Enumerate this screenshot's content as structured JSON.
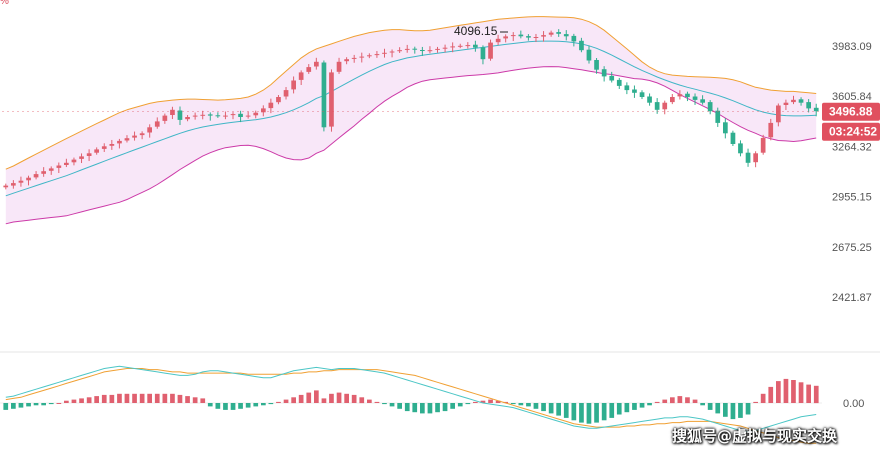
{
  "corner_mark": "%",
  "watermark": "搜狐号@虚拟与现实交换",
  "colors": {
    "up": "#e0606f",
    "down": "#2fae8f",
    "upper_band": "#f0a033",
    "lower_band": "#cc3aa8",
    "middle_band": "#3fb6c6",
    "band_fill": "#f7e3f7",
    "macd_line": "#4cc6c6",
    "signal_line": "#f0a033",
    "badge": "#e0505f"
  },
  "chart_data": {
    "type": "candlestick",
    "price_axis_ticks": [
      "3983.09",
      "3605.84",
      "3264.32",
      "2955.15",
      "2675.25",
      "2421.87"
    ],
    "price_axis_values": [
      3983.09,
      3605.84,
      3264.32,
      2955.15,
      2675.25,
      2421.87
    ],
    "scale": "log",
    "ylim": [
      2250,
      4500
    ],
    "peak_label": "4096.15",
    "last_price": "3496.88",
    "countdown": "03:24:52",
    "close": [
      3020,
      3035,
      3050,
      3068,
      3090,
      3108,
      3125,
      3143,
      3160,
      3180,
      3200,
      3220,
      3245,
      3265,
      3280,
      3300,
      3318,
      3335,
      3350,
      3390,
      3430,
      3470,
      3510,
      3440,
      3460,
      3470,
      3475,
      3470,
      3468,
      3470,
      3480,
      3460,
      3470,
      3490,
      3520,
      3560,
      3600,
      3650,
      3720,
      3780,
      3820,
      3860,
      3390,
      3780,
      3860,
      3880,
      3890,
      3900,
      3910,
      3920,
      3930,
      3940,
      3950,
      3960,
      3955,
      3945,
      3950,
      3960,
      3970,
      3980,
      3985,
      3990,
      3970,
      3880,
      4010,
      4040,
      4060,
      4070,
      4060,
      4050,
      4055,
      4070,
      4090,
      4080,
      4060,
      4020,
      3950,
      3870,
      3800,
      3750,
      3720,
      3680,
      3650,
      3630,
      3600,
      3560,
      3510,
      3560,
      3600,
      3620,
      3600,
      3580,
      3560,
      3500,
      3420,
      3350,
      3280,
      3220,
      3160,
      3220,
      3320,
      3420,
      3540,
      3560,
      3580,
      3560,
      3520,
      3500
    ],
    "open": [
      3010,
      3020,
      3038,
      3052,
      3070,
      3092,
      3110,
      3128,
      3146,
      3163,
      3184,
      3203,
      3224,
      3248,
      3268,
      3284,
      3303,
      3322,
      3338,
      3355,
      3394,
      3434,
      3474,
      3505,
      3445,
      3463,
      3472,
      3478,
      3472,
      3466,
      3473,
      3482,
      3463,
      3472,
      3493,
      3522,
      3563,
      3604,
      3655,
      3724,
      3784,
      3824,
      3855,
      3395,
      3784,
      3865,
      3884,
      3894,
      3904,
      3914,
      3924,
      3934,
      3944,
      3954,
      3962,
      3952,
      3942,
      3954,
      3964,
      3974,
      3982,
      3987,
      3993,
      3972,
      3884,
      4013,
      4044,
      4063,
      4074,
      4062,
      4047,
      4058,
      4073,
      4094,
      4078,
      4064,
      4024,
      3954,
      3874,
      3804,
      3754,
      3724,
      3684,
      3654,
      3634,
      3604,
      3564,
      3514,
      3564,
      3604,
      3624,
      3604,
      3584,
      3564,
      3504,
      3424,
      3354,
      3284,
      3224,
      3164,
      3224,
      3324,
      3424,
      3544,
      3564,
      3584,
      3564,
      3524
    ],
    "bollinger_upper": [
      3120,
      3140,
      3165,
      3190,
      3215,
      3240,
      3265,
      3290,
      3315,
      3340,
      3365,
      3390,
      3415,
      3440,
      3465,
      3490,
      3510,
      3525,
      3540,
      3555,
      3565,
      3572,
      3578,
      3582,
      3585,
      3585,
      3582,
      3580,
      3578,
      3580,
      3585,
      3590,
      3600,
      3620,
      3650,
      3690,
      3740,
      3790,
      3840,
      3890,
      3930,
      3960,
      3980,
      4000,
      4020,
      4040,
      4060,
      4075,
      4090,
      4100,
      4110,
      4115,
      4115,
      4110,
      4105,
      4105,
      4110,
      4120,
      4130,
      4140,
      4150,
      4160,
      4170,
      4180,
      4190,
      4200,
      4205,
      4210,
      4215,
      4220,
      4222,
      4222,
      4220,
      4218,
      4216,
      4212,
      4200,
      4180,
      4150,
      4110,
      4060,
      4010,
      3960,
      3910,
      3860,
      3820,
      3790,
      3770,
      3760,
      3755,
      3750,
      3748,
      3746,
      3744,
      3740,
      3735,
      3725,
      3710,
      3690,
      3670,
      3660,
      3650,
      3645,
      3640,
      3640,
      3635,
      3630,
      3625
    ],
    "bollinger_middle": [
      2960,
      2975,
      2990,
      3005,
      3020,
      3035,
      3050,
      3065,
      3080,
      3098,
      3116,
      3134,
      3152,
      3170,
      3188,
      3206,
      3224,
      3242,
      3260,
      3278,
      3296,
      3314,
      3332,
      3350,
      3366,
      3380,
      3392,
      3402,
      3410,
      3418,
      3424,
      3430,
      3436,
      3442,
      3450,
      3460,
      3474,
      3490,
      3510,
      3534,
      3560,
      3590,
      3610,
      3640,
      3670,
      3700,
      3730,
      3760,
      3788,
      3815,
      3840,
      3860,
      3875,
      3890,
      3900,
      3910,
      3918,
      3926,
      3934,
      3942,
      3950,
      3958,
      3965,
      3972,
      3980,
      3988,
      3996,
      4003,
      4010,
      4016,
      4020,
      4022,
      4022,
      4020,
      4016,
      4010,
      4000,
      3985,
      3965,
      3940,
      3912,
      3882,
      3852,
      3822,
      3795,
      3770,
      3746,
      3724,
      3704,
      3686,
      3670,
      3656,
      3642,
      3628,
      3612,
      3594,
      3574,
      3552,
      3530,
      3510,
      3494,
      3482,
      3474,
      3470,
      3468,
      3468,
      3470,
      3472
    ],
    "bollinger_lower": [
      2800,
      2810,
      2815,
      2820,
      2825,
      2830,
      2835,
      2840,
      2845,
      2856,
      2867,
      2878,
      2889,
      2900,
      2911,
      2922,
      2938,
      2959,
      2980,
      3001,
      3027,
      3056,
      3086,
      3118,
      3147,
      3175,
      3202,
      3224,
      3242,
      3256,
      3263,
      3270,
      3272,
      3264,
      3250,
      3230,
      3208,
      3190,
      3180,
      3178,
      3190,
      3220,
      3240,
      3280,
      3320,
      3360,
      3400,
      3445,
      3486,
      3530,
      3570,
      3605,
      3635,
      3670,
      3695,
      3715,
      3726,
      3732,
      3738,
      3744,
      3750,
      3756,
      3760,
      3764,
      3770,
      3776,
      3787,
      3796,
      3805,
      3812,
      3818,
      3822,
      3824,
      3822,
      3816,
      3808,
      3800,
      3790,
      3780,
      3770,
      3764,
      3754,
      3744,
      3734,
      3730,
      3720,
      3702,
      3678,
      3648,
      3617,
      3590,
      3564,
      3538,
      3512,
      3484,
      3453,
      3423,
      3394,
      3370,
      3350,
      3328,
      3314,
      3303,
      3300,
      3296,
      3301,
      3310,
      3319
    ],
    "macd_axis_label": "0.00",
    "macd_histogram": [
      -6,
      -5,
      -4,
      -3,
      -2,
      -2,
      -1,
      0,
      2,
      3,
      4,
      5,
      6,
      7,
      7,
      8,
      8,
      8,
      8,
      8,
      8,
      8,
      8,
      7,
      6,
      5,
      4,
      -3,
      -5,
      -6,
      -6,
      -5,
      -4,
      -3,
      -2,
      -1,
      1,
      3,
      5,
      7,
      9,
      11,
      4,
      8,
      9,
      8,
      7,
      5,
      3,
      1,
      -1,
      -3,
      -5,
      -7,
      -8,
      -9,
      -9,
      -8,
      -7,
      -5,
      -3,
      -1,
      1,
      2,
      3,
      2,
      1,
      -1,
      -2,
      -3,
      -5,
      -7,
      -9,
      -11,
      -13,
      -15,
      -17,
      -18,
      -17,
      -15,
      -13,
      -10,
      -8,
      -6,
      -4,
      -2,
      1,
      3,
      5,
      6,
      5,
      3,
      -2,
      -6,
      -9,
      -12,
      -14,
      -13,
      -10,
      1,
      8,
      14,
      19,
      21,
      20,
      18,
      16,
      15
    ],
    "macd_line": [
      5,
      6,
      8,
      10,
      12,
      14,
      16,
      18,
      20,
      22,
      24,
      26,
      28,
      30,
      31,
      32,
      31,
      30,
      29,
      28,
      27,
      26,
      25,
      24,
      24,
      25,
      27,
      28,
      28,
      27,
      26,
      25,
      24,
      23,
      22,
      22,
      24,
      26,
      28,
      29,
      30,
      31,
      30,
      29,
      30,
      30,
      30,
      29,
      28,
      27,
      26,
      24,
      22,
      20,
      18,
      16,
      14,
      12,
      10,
      8,
      6,
      4,
      2,
      0,
      -1,
      -2,
      -3,
      -4,
      -6,
      -8,
      -10,
      -12,
      -14,
      -16,
      -18,
      -20,
      -21,
      -22,
      -22,
      -21,
      -20,
      -19,
      -18,
      -17,
      -16,
      -15,
      -14,
      -13,
      -13,
      -12,
      -12,
      -13,
      -14,
      -16,
      -18,
      -20,
      -22,
      -24,
      -25,
      -24,
      -22,
      -20,
      -18,
      -16,
      -14,
      -12,
      -11,
      -10
    ],
    "signal_line": [
      3,
      4,
      5,
      7,
      9,
      11,
      13,
      15,
      17,
      19,
      21,
      23,
      25,
      27,
      28,
      29,
      30,
      30,
      30,
      29,
      29,
      28,
      27,
      27,
      26,
      26,
      26,
      26,
      26,
      26,
      26,
      26,
      25,
      25,
      25,
      25,
      25,
      25,
      26,
      26,
      27,
      27,
      28,
      28,
      29,
      29,
      29,
      29,
      29,
      29,
      28,
      27,
      26,
      25,
      24,
      22,
      20,
      18,
      16,
      14,
      12,
      10,
      8,
      6,
      4,
      2,
      0,
      -2,
      -4,
      -6,
      -8,
      -10,
      -12,
      -14,
      -16,
      -18,
      -19,
      -20,
      -21,
      -21,
      -21,
      -21,
      -20,
      -20,
      -19,
      -19,
      -18,
      -18,
      -17,
      -17,
      -16,
      -16,
      -16,
      -16,
      -17,
      -18,
      -19,
      -20,
      -22,
      -24,
      -26,
      -28,
      -30,
      -32,
      -33,
      -34,
      -35,
      -35
    ]
  }
}
